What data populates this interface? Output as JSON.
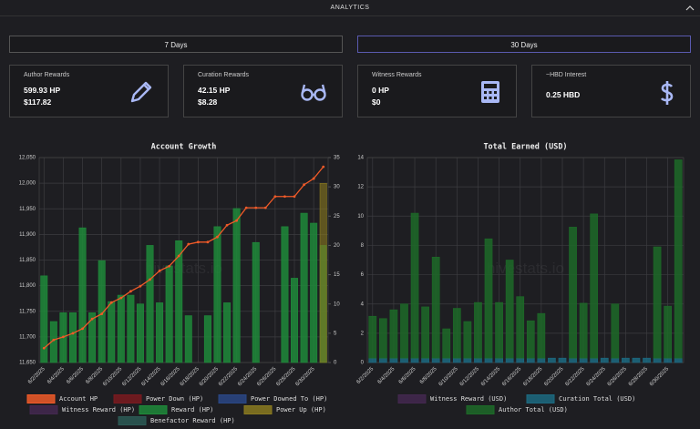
{
  "header": {
    "title": "ANALYTICS"
  },
  "buttons": [
    "7 Days",
    "30 Days"
  ],
  "cards": [
    {
      "title": "Author Rewards",
      "lines": [
        "599.93 HP",
        "$117.82"
      ]
    },
    {
      "title": "Curation Rewards",
      "lines": [
        "42.15 HP",
        "$8.28"
      ]
    },
    {
      "title": "Witness Rewards",
      "lines": [
        "0 HP",
        "$0"
      ]
    },
    {
      "title": "~HBD Interest",
      "lines": [
        "0.25 HBD"
      ]
    }
  ],
  "chart_data": [
    {
      "type": "bar",
      "title": "Account Growth",
      "watermark": "hivestats.io",
      "categories": [
        "6/2/2025",
        null,
        "6/4/2025",
        null,
        "6/6/2025",
        null,
        "6/8/2025",
        null,
        "6/10/2025",
        null,
        "6/12/2025",
        null,
        "6/14/2025",
        null,
        "6/16/2025",
        null,
        "6/18/2025",
        null,
        "6/20/2025",
        null,
        "6/22/2025",
        null,
        "6/24/2025",
        null,
        "6/26/2025",
        null,
        "6/28/2025",
        null,
        "6/30/2025",
        null
      ],
      "ylim": [
        11650,
        12050
      ],
      "yticks": [
        {
          "value": 11650,
          "label": "11,650"
        },
        {
          "value": 11700,
          "label": "11,700"
        },
        {
          "value": 11750,
          "label": "11,750"
        },
        {
          "value": 11800,
          "label": "11,800"
        },
        {
          "value": 11850,
          "label": "11,850"
        },
        {
          "value": 11900,
          "label": "11,900"
        },
        {
          "value": 11950,
          "label": "11,950"
        },
        {
          "value": 12000,
          "label": "12,000"
        },
        {
          "value": 12050,
          "label": "12,050"
        }
      ],
      "y2lim": [
        0,
        35
      ],
      "y2ticks": [
        0,
        5,
        10,
        15,
        20,
        25,
        30,
        35
      ],
      "grid": true,
      "series": [
        {
          "name": "Account HP",
          "color": "#f05a28",
          "type": "line",
          "values": [
            11678,
            11694,
            11700,
            11707,
            11716,
            11735,
            11745,
            11767,
            11776,
            11789,
            11799,
            11812,
            11829,
            11838,
            11858,
            11881,
            11885,
            11885,
            11895,
            11918,
            11927,
            11952,
            11952,
            11952,
            11974,
            11974,
            11974,
            11997,
            12009,
            12032
          ]
        },
        {
          "name": "Power Down (HP)",
          "color": "#7a1a1f"
        },
        {
          "name": "Power Downed To (HP)",
          "color": "#2a4785"
        },
        {
          "name": "Witness Reward (HP)",
          "color": "#43284f"
        },
        {
          "name": "Reward (HP)",
          "color": "#1f8a3a",
          "axis": "y2",
          "values": [
            14.8,
            7,
            8.5,
            8.5,
            23,
            8.5,
            17.4,
            10.4,
            11.5,
            11.5,
            10,
            20,
            10.2,
            16.5,
            20.8,
            8,
            null,
            8,
            23.2,
            10.2,
            26.3,
            null,
            20.5,
            null,
            null,
            23.2,
            14.4,
            25.5,
            23.8,
            20
          ]
        },
        {
          "name": "Power Up (HP)",
          "color": "#8a7a20",
          "axis": "y2",
          "values": [
            null,
            null,
            null,
            null,
            null,
            null,
            null,
            null,
            null,
            null,
            null,
            null,
            null,
            null,
            null,
            null,
            null,
            null,
            null,
            null,
            null,
            null,
            null,
            null,
            null,
            null,
            null,
            null,
            null,
            30.6
          ]
        },
        {
          "name": "Benefactor Reward (HP)",
          "color": "#2c5a55"
        }
      ]
    },
    {
      "type": "bar",
      "title": "Total Earned (USD)",
      "watermark": "hivestats.io",
      "stacked": true,
      "categories": [
        "6/2/2025",
        null,
        "6/4/2025",
        null,
        "6/6/2025",
        null,
        "6/8/2025",
        null,
        "6/10/2025",
        null,
        "6/12/2025",
        null,
        "6/14/2025",
        null,
        "6/16/2025",
        null,
        "6/18/2025",
        null,
        "6/20/2025",
        null,
        "6/22/2025",
        null,
        "6/24/2025",
        null,
        "6/26/2025",
        null,
        "6/28/2025",
        null,
        "6/30/2025",
        null
      ],
      "ylim": [
        0,
        14
      ],
      "yticks": [
        0,
        2,
        4,
        6,
        8,
        10,
        12,
        14
      ],
      "grid": true,
      "series": [
        {
          "name": "Witness Reward (USD)",
          "color": "#43284f"
        },
        {
          "name": "Curation Total (USD)",
          "color": "#1c6a80",
          "values": [
            0.3,
            0.3,
            0.3,
            0.3,
            0.3,
            0.3,
            0.3,
            0.3,
            0.3,
            0.3,
            0.3,
            0.3,
            0.3,
            0.3,
            0.3,
            0.3,
            0.3,
            0.3,
            0.3,
            0.3,
            0.3,
            0.3,
            0.3,
            0.3,
            0.3,
            0.3,
            0.3,
            0.3,
            0.3,
            0.3
          ]
        },
        {
          "name": "Author Total (USD)",
          "color": "#1d6a28",
          "values": [
            2.86,
            2.7,
            3.3,
            3.7,
            9.9,
            3.5,
            6.9,
            2.0,
            3.4,
            2.5,
            3.8,
            8.15,
            3.8,
            6.7,
            4.2,
            2.55,
            3.05,
            null,
            null,
            8.95,
            3.75,
            9.85,
            null,
            3.7,
            null,
            null,
            null,
            7.6,
            3.55,
            13.55
          ]
        }
      ]
    }
  ]
}
